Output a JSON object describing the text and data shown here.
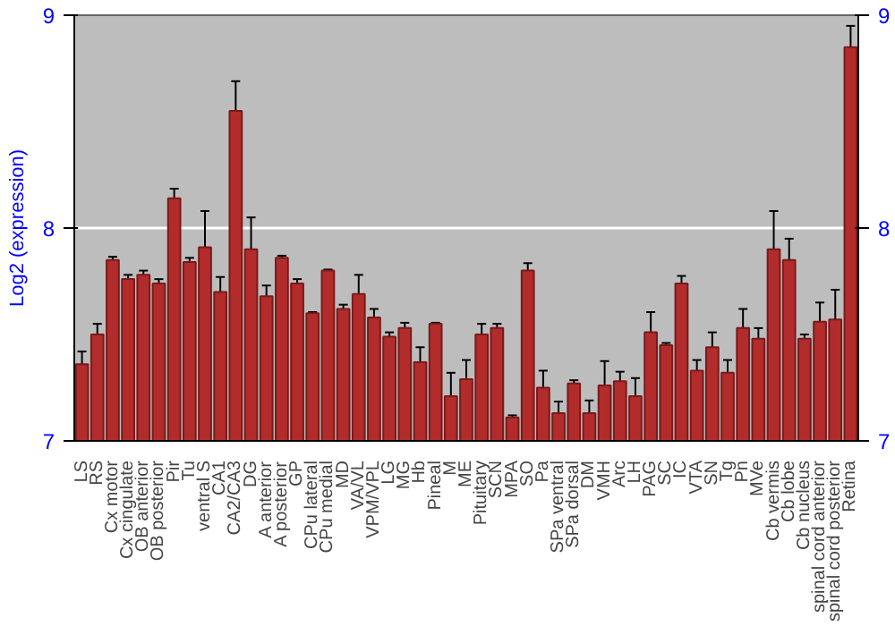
{
  "chart_data": {
    "type": "bar",
    "ylabel": "Log2 (expression)",
    "categories": [
      "LS",
      "RS",
      "Cx motor",
      "Cx cingulate",
      "OB anterior",
      "OB posterior",
      "Pir",
      "Tu",
      "ventral S",
      "CA1",
      "CA2/CA3",
      "DG",
      "A anterior",
      "A posterior",
      "GP",
      "CPu lateral",
      "CPu medial",
      "MD",
      "VA/VL",
      "VPM/VPL",
      "LG",
      "MG",
      "Hb",
      "Pineal",
      "M",
      "ME",
      "Pituitary",
      "SCN",
      "MPA",
      "SO",
      "Pa",
      "SPa ventral",
      "SPa dorsal",
      "DM",
      "VMH",
      "Arc",
      "LH",
      "PAG",
      "SC",
      "IC",
      "VTA",
      "SN",
      "Tg",
      "Pn",
      "MVe",
      "Cb vermis",
      "Cb lobe",
      "Cb nucleus",
      "spinal cord anterior",
      "spinal cord posterior",
      "Retina"
    ],
    "values": [
      7.36,
      7.5,
      7.85,
      7.76,
      7.78,
      7.74,
      8.14,
      7.84,
      7.91,
      7.7,
      8.55,
      7.9,
      7.68,
      7.86,
      7.74,
      7.6,
      7.8,
      7.62,
      7.69,
      7.58,
      7.49,
      7.53,
      7.37,
      7.55,
      7.21,
      7.29,
      7.5,
      7.53,
      7.11,
      7.8,
      7.25,
      7.13,
      7.27,
      7.13,
      7.26,
      7.28,
      7.21,
      7.51,
      7.45,
      7.74,
      7.33,
      7.44,
      7.32,
      7.53,
      7.48,
      7.9,
      7.85,
      7.48,
      7.56,
      7.57,
      8.85
    ],
    "errors": [
      0.06,
      0.05,
      0.015,
      0.02,
      0.02,
      0.02,
      0.045,
      0.02,
      0.17,
      0.07,
      0.14,
      0.15,
      0.05,
      0.01,
      0.02,
      0.005,
      0.005,
      0.02,
      0.09,
      0.04,
      0.02,
      0.025,
      0.07,
      0.005,
      0.11,
      0.09,
      0.05,
      0.02,
      0.01,
      0.035,
      0.08,
      0.055,
      0.015,
      0.06,
      0.115,
      0.045,
      0.085,
      0.095,
      0.01,
      0.035,
      0.05,
      0.07,
      0.06,
      0.09,
      0.05,
      0.18,
      0.1,
      0.02,
      0.09,
      0.14,
      0.1
    ],
    "color": "#b22c2c",
    "ylim": [
      7,
      9
    ],
    "yticks": [
      7,
      8,
      9
    ],
    "y2lim": [
      7,
      9
    ],
    "y2ticks": [
      7,
      8,
      9
    ],
    "grid": "y"
  }
}
